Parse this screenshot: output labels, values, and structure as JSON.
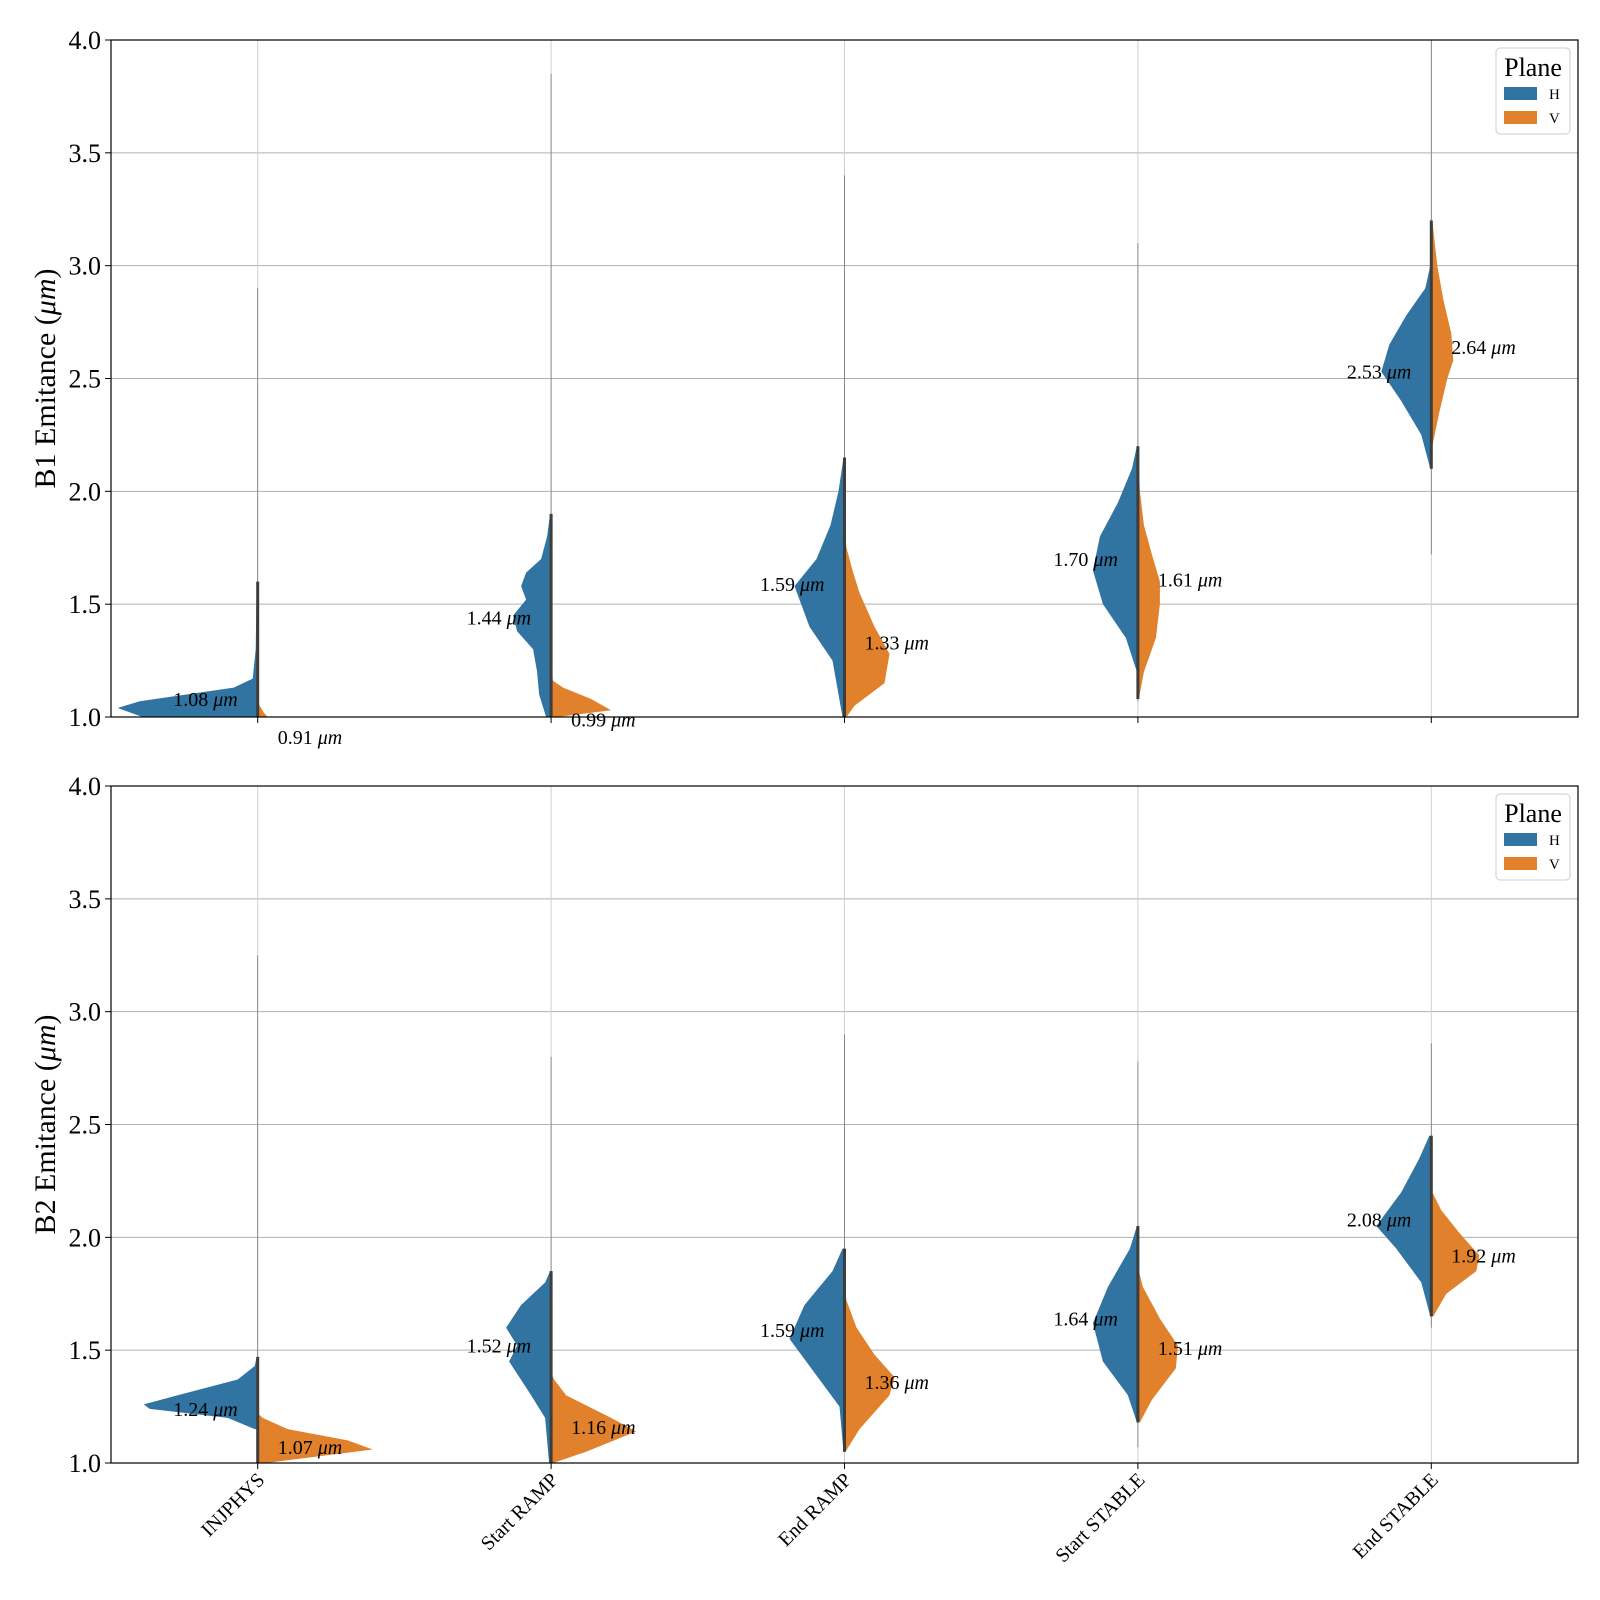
{
  "chart_data": {
    "type": "violin",
    "categories": [
      "INJPHYS",
      "Start RAMP",
      "End RAMP",
      "Start STABLE",
      "End STABLE"
    ],
    "legend": {
      "title": "Plane",
      "entries": [
        {
          "name": "H",
          "color": "#3274a1"
        },
        {
          "name": "V",
          "color": "#e1812c"
        }
      ],
      "placement": "top-right"
    },
    "ylim": [
      1.0,
      4.0
    ],
    "yticks": [
      1.0,
      1.5,
      2.0,
      2.5,
      3.0,
      3.5,
      4.0
    ],
    "ytick_labels": [
      "1.0",
      "1.5",
      "2.0",
      "2.5",
      "3.0",
      "3.5",
      "4.0"
    ],
    "grid": true,
    "unit_label": "μm",
    "panels": [
      {
        "ylabel": "B1 Emitance (μm)",
        "ylabel_main": "B1 Emitance (",
        "ylabel_unit": "μm",
        "ylabel_end": ")",
        "series": [
          {
            "name": "H",
            "medians": [
              1.08,
              1.44,
              1.59,
              1.7,
              2.53
            ],
            "median_labels": [
              "1.08",
              "1.44",
              "1.59",
              "1.70",
              "2.53"
            ],
            "range_max": [
              2.9,
              3.85,
              3.4,
              3.1,
              3.85
            ],
            "range_min": [
              1.0,
              1.0,
              1.0,
              1.1,
              1.72
            ]
          },
          {
            "name": "V",
            "medians": [
              0.91,
              0.99,
              1.33,
              1.61,
              2.64
            ],
            "median_labels": [
              "0.91",
              "0.99",
              "1.33",
              "1.61",
              "2.64"
            ],
            "range_max": [
              1.6,
              2.2,
              2.6,
              2.5,
              4.0
            ],
            "range_min": [
              1.0,
              1.0,
              1.0,
              1.07,
              1.72
            ]
          }
        ]
      },
      {
        "ylabel": "B2 Emitance (μm)",
        "ylabel_main": "B2 Emitance (",
        "ylabel_unit": "μm",
        "ylabel_end": ")",
        "series": [
          {
            "name": "H",
            "medians": [
              1.24,
              1.52,
              1.59,
              1.64,
              2.08
            ],
            "median_labels": [
              "1.24",
              "1.52",
              "1.59",
              "1.64",
              "2.08"
            ],
            "range_max": [
              3.25,
              2.8,
              2.9,
              2.78,
              2.86
            ],
            "range_min": [
              1.0,
              1.0,
              1.05,
              1.07,
              1.6
            ]
          },
          {
            "name": "V",
            "medians": [
              1.07,
              1.16,
              1.36,
              1.51,
              1.92
            ],
            "median_labels": [
              "1.07",
              "1.16",
              "1.36",
              "1.51",
              "1.92"
            ],
            "range_max": [
              1.45,
              2.0,
              2.3,
              2.1,
              2.6
            ],
            "range_min": [
              1.0,
              1.0,
              1.05,
              1.07,
              1.6
            ]
          }
        ]
      }
    ]
  }
}
